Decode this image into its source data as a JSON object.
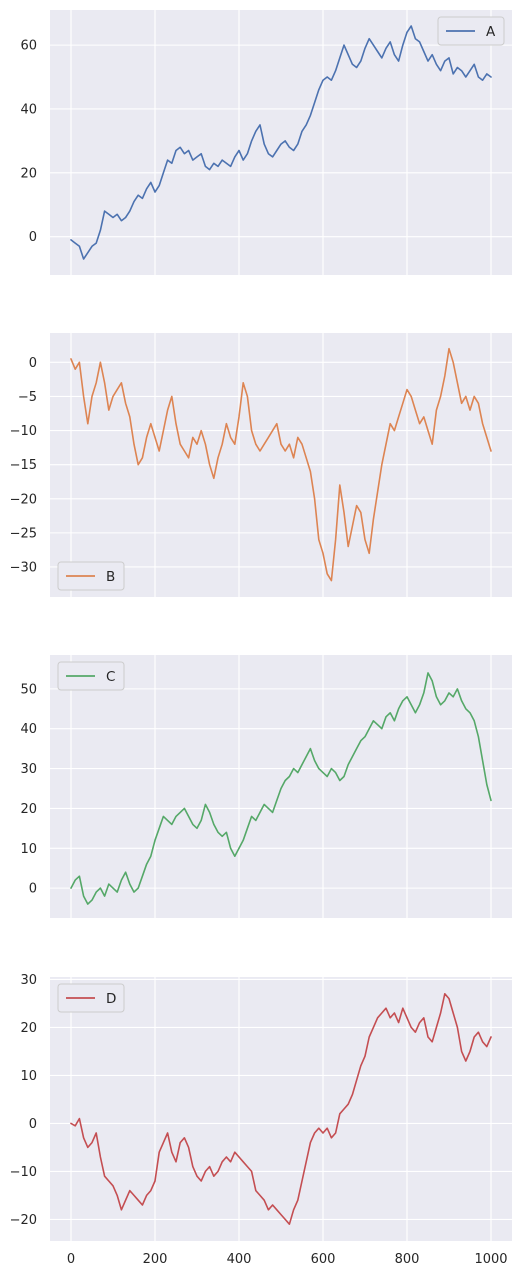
{
  "colors": {
    "background": "#ffffff",
    "axes_face": "#eaeaf2",
    "grid": "#ffffff",
    "text": "#262626",
    "legend_border": "#cccccc"
  },
  "chart_data": [
    {
      "type": "line",
      "title": "",
      "xlabel": "",
      "ylabel": "",
      "xlim": [
        -50,
        1050
      ],
      "ylim": [
        -12,
        71
      ],
      "xticks": [
        0,
        200,
        400,
        600,
        800,
        1000
      ],
      "yticks": [
        0,
        20,
        40,
        60
      ],
      "show_xtick_labels": false,
      "grid": true,
      "legend_position": "top-right",
      "series": [
        {
          "name": "A",
          "color": "#4c72b0",
          "x": [
            0,
            10,
            20,
            30,
            40,
            50,
            60,
            70,
            80,
            90,
            100,
            110,
            120,
            130,
            140,
            150,
            160,
            170,
            180,
            190,
            200,
            210,
            220,
            230,
            240,
            250,
            260,
            270,
            280,
            290,
            300,
            310,
            320,
            330,
            340,
            350,
            360,
            370,
            380,
            390,
            400,
            410,
            420,
            430,
            440,
            450,
            460,
            470,
            480,
            490,
            500,
            510,
            520,
            530,
            540,
            550,
            560,
            570,
            580,
            590,
            600,
            610,
            620,
            630,
            640,
            650,
            660,
            670,
            680,
            690,
            700,
            710,
            720,
            730,
            740,
            750,
            760,
            770,
            780,
            790,
            800,
            810,
            820,
            830,
            840,
            850,
            860,
            870,
            880,
            890,
            900,
            910,
            920,
            930,
            940,
            950,
            960,
            970,
            980,
            990,
            1000
          ],
          "y": [
            -1,
            -2,
            -3,
            -7,
            -5,
            -3,
            -2,
            2,
            8,
            7,
            6,
            7,
            5,
            6,
            8,
            11,
            13,
            12,
            15,
            17,
            14,
            16,
            20,
            24,
            23,
            27,
            28,
            26,
            27,
            24,
            25,
            26,
            22,
            21,
            23,
            22,
            24,
            23,
            22,
            25,
            27,
            24,
            26,
            30,
            33,
            35,
            29,
            26,
            25,
            27,
            29,
            30,
            28,
            27,
            29,
            33,
            35,
            38,
            42,
            46,
            49,
            50,
            49,
            52,
            56,
            60,
            57,
            54,
            53,
            55,
            59,
            62,
            60,
            58,
            56,
            59,
            61,
            57,
            55,
            60,
            64,
            66,
            62,
            61,
            58,
            55,
            57,
            54,
            52,
            55,
            56,
            51,
            53,
            52,
            50,
            52,
            54,
            50,
            49,
            51,
            50
          ]
        }
      ]
    },
    {
      "type": "line",
      "title": "",
      "xlabel": "",
      "ylabel": "",
      "xlim": [
        -50,
        1050
      ],
      "ylim": [
        -34.4,
        4.3
      ],
      "xticks": [
        0,
        200,
        400,
        600,
        800,
        1000
      ],
      "yticks": [
        0,
        -5,
        -10,
        -15,
        -20,
        -25,
        -30
      ],
      "show_xtick_labels": false,
      "grid": true,
      "legend_position": "bottom-left",
      "series": [
        {
          "name": "B",
          "color": "#dd8452",
          "x": [
            0,
            10,
            20,
            30,
            40,
            50,
            60,
            70,
            80,
            90,
            100,
            110,
            120,
            130,
            140,
            150,
            160,
            170,
            180,
            190,
            200,
            210,
            220,
            230,
            240,
            250,
            260,
            270,
            280,
            290,
            300,
            310,
            320,
            330,
            340,
            350,
            360,
            370,
            380,
            390,
            400,
            410,
            420,
            430,
            440,
            450,
            460,
            470,
            480,
            490,
            500,
            510,
            520,
            530,
            540,
            550,
            560,
            570,
            580,
            590,
            600,
            610,
            620,
            630,
            640,
            650,
            660,
            670,
            680,
            690,
            700,
            710,
            720,
            730,
            740,
            750,
            760,
            770,
            780,
            790,
            800,
            810,
            820,
            830,
            840,
            850,
            860,
            870,
            880,
            890,
            900,
            910,
            920,
            930,
            940,
            950,
            960,
            970,
            980,
            990,
            1000
          ],
          "y": [
            0.5,
            -1,
            0,
            -5,
            -9,
            -5,
            -3,
            0,
            -3,
            -7,
            -5,
            -4,
            -3,
            -6,
            -8,
            -12,
            -15,
            -14,
            -11,
            -9,
            -11,
            -13,
            -10,
            -7,
            -5,
            -9,
            -12,
            -13,
            -14,
            -11,
            -12,
            -10,
            -12,
            -15,
            -17,
            -14,
            -12,
            -9,
            -11,
            -12,
            -8,
            -3,
            -5,
            -10,
            -12,
            -13,
            -12,
            -11,
            -10,
            -9,
            -12,
            -13,
            -12,
            -14,
            -11,
            -12,
            -14,
            -16,
            -20,
            -26,
            -28,
            -31,
            -32,
            -26,
            -18,
            -22,
            -27,
            -24,
            -21,
            -22,
            -26,
            -28,
            -23,
            -19,
            -15,
            -12,
            -9,
            -10,
            -8,
            -6,
            -4,
            -5,
            -7,
            -9,
            -8,
            -10,
            -12,
            -7,
            -5,
            -2,
            2,
            0,
            -3,
            -6,
            -5,
            -7,
            -5,
            -6,
            -9,
            -11,
            -13
          ]
        }
      ]
    },
    {
      "type": "line",
      "title": "",
      "xlabel": "",
      "ylabel": "",
      "xlim": [
        -50,
        1050
      ],
      "ylim": [
        -7.5,
        58.5
      ],
      "xticks": [
        0,
        200,
        400,
        600,
        800,
        1000
      ],
      "yticks": [
        0,
        10,
        20,
        30,
        40,
        50
      ],
      "show_xtick_labels": false,
      "grid": true,
      "legend_position": "top-left",
      "series": [
        {
          "name": "C",
          "color": "#55a868",
          "x": [
            0,
            10,
            20,
            30,
            40,
            50,
            60,
            70,
            80,
            90,
            100,
            110,
            120,
            130,
            140,
            150,
            160,
            170,
            180,
            190,
            200,
            210,
            220,
            230,
            240,
            250,
            260,
            270,
            280,
            290,
            300,
            310,
            320,
            330,
            340,
            350,
            360,
            370,
            380,
            390,
            400,
            410,
            420,
            430,
            440,
            450,
            460,
            470,
            480,
            490,
            500,
            510,
            520,
            530,
            540,
            550,
            560,
            570,
            580,
            590,
            600,
            610,
            620,
            630,
            640,
            650,
            660,
            670,
            680,
            690,
            700,
            710,
            720,
            730,
            740,
            750,
            760,
            770,
            780,
            790,
            800,
            810,
            820,
            830,
            840,
            850,
            860,
            870,
            880,
            890,
            900,
            910,
            920,
            930,
            940,
            950,
            960,
            970,
            980,
            990,
            1000
          ],
          "y": [
            0,
            2,
            3,
            -2,
            -4,
            -3,
            -1,
            0,
            -2,
            1,
            0,
            -1,
            2,
            4,
            1,
            -1,
            0,
            3,
            6,
            8,
            12,
            15,
            18,
            17,
            16,
            18,
            19,
            20,
            18,
            16,
            15,
            17,
            21,
            19,
            16,
            14,
            13,
            14,
            10,
            8,
            10,
            12,
            15,
            18,
            17,
            19,
            21,
            20,
            19,
            22,
            25,
            27,
            28,
            30,
            29,
            31,
            33,
            35,
            32,
            30,
            29,
            28,
            30,
            29,
            27,
            28,
            31,
            33,
            35,
            37,
            38,
            40,
            42,
            41,
            40,
            43,
            44,
            42,
            45,
            47,
            48,
            46,
            44,
            46,
            49,
            54,
            52,
            48,
            46,
            47,
            49,
            48,
            50,
            47,
            45,
            44,
            42,
            38,
            32,
            26,
            22
          ]
        }
      ]
    },
    {
      "type": "line",
      "title": "",
      "xlabel": "",
      "ylabel": "",
      "xlim": [
        -50,
        1050
      ],
      "ylim": [
        -24.5,
        30.5
      ],
      "xticks": [
        0,
        200,
        400,
        600,
        800,
        1000
      ],
      "yticks": [
        30,
        20,
        10,
        0,
        -10,
        -20
      ],
      "show_xtick_labels": true,
      "grid": true,
      "legend_position": "top-left",
      "series": [
        {
          "name": "D",
          "color": "#c44e52",
          "x": [
            0,
            10,
            20,
            30,
            40,
            50,
            60,
            70,
            80,
            90,
            100,
            110,
            120,
            130,
            140,
            150,
            160,
            170,
            180,
            190,
            200,
            210,
            220,
            230,
            240,
            250,
            260,
            270,
            280,
            290,
            300,
            310,
            320,
            330,
            340,
            350,
            360,
            370,
            380,
            390,
            400,
            410,
            420,
            430,
            440,
            450,
            460,
            470,
            480,
            490,
            500,
            510,
            520,
            530,
            540,
            550,
            560,
            570,
            580,
            590,
            600,
            610,
            620,
            630,
            640,
            650,
            660,
            670,
            680,
            690,
            700,
            710,
            720,
            730,
            740,
            750,
            760,
            770,
            780,
            790,
            800,
            810,
            820,
            830,
            840,
            850,
            860,
            870,
            880,
            890,
            900,
            910,
            920,
            930,
            940,
            950,
            960,
            970,
            980,
            990,
            1000
          ],
          "y": [
            0,
            -0.5,
            1,
            -3,
            -5,
            -4,
            -2,
            -7,
            -11,
            -12,
            -13,
            -15,
            -18,
            -16,
            -14,
            -15,
            -16,
            -17,
            -15,
            -14,
            -12,
            -6,
            -4,
            -2,
            -6,
            -8,
            -4,
            -3,
            -5,
            -9,
            -11,
            -12,
            -10,
            -9,
            -11,
            -10,
            -8,
            -7,
            -8,
            -6,
            -7,
            -8,
            -9,
            -10,
            -14,
            -15,
            -16,
            -18,
            -17,
            -18,
            -19,
            -20,
            -21,
            -18,
            -16,
            -12,
            -8,
            -4,
            -2,
            -1,
            -2,
            -1,
            -3,
            -2,
            2,
            3,
            4,
            6,
            9,
            12,
            14,
            18,
            20,
            22,
            23,
            24,
            22,
            23,
            21,
            24,
            22,
            20,
            19,
            21,
            22,
            18,
            17,
            20,
            23,
            27,
            26,
            23,
            20,
            15,
            13,
            15,
            18,
            19,
            17,
            16,
            18
          ]
        }
      ]
    }
  ],
  "x_axis_tick_labels": [
    "0",
    "200",
    "400",
    "600",
    "800",
    "1000"
  ]
}
